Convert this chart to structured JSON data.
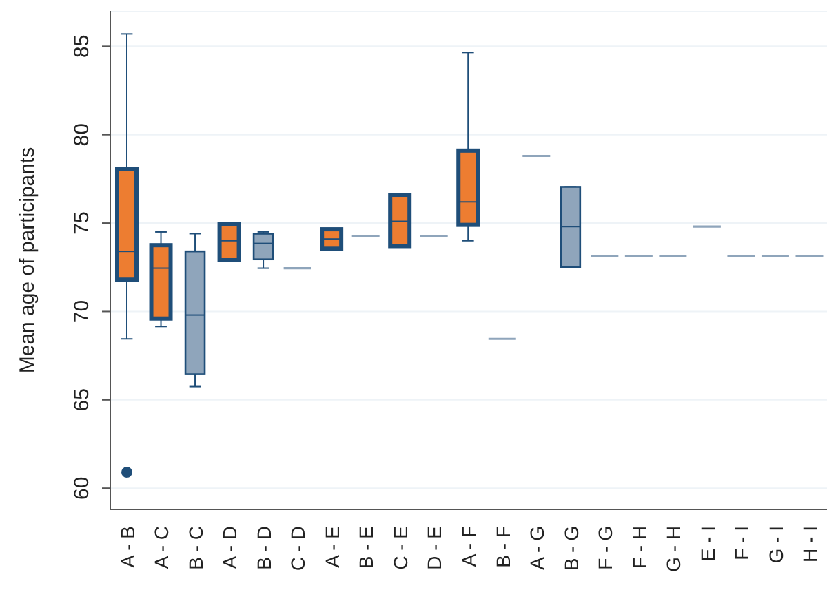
{
  "chart_data": {
    "type": "box",
    "ylabel": "Mean age of participants",
    "categories": [
      "A - B",
      "A - C",
      "B - C",
      "A - D",
      "B - D",
      "C - D",
      "A - E",
      "B - E",
      "C - E",
      "D - E",
      "A - F",
      "B - F",
      "A - G",
      "B - G",
      "F - G",
      "F - H",
      "G - H",
      "E - I",
      "F - I",
      "G - I",
      "H - I"
    ],
    "series": [
      {
        "color": "#ed7d31",
        "boxes": [
          {
            "low": 68.45,
            "q1": 71.8,
            "median": 73.4,
            "q3": 78.05,
            "high": 85.7,
            "outliers": [
              60.9
            ]
          },
          {
            "low": 69.15,
            "q1": 69.6,
            "median": 72.45,
            "q3": 73.75,
            "high": 74.5
          },
          null,
          {
            "low": 72.9,
            "q1": 72.9,
            "median": 74.0,
            "q3": 74.95,
            "high": 74.95
          },
          null,
          null,
          {
            "low": 73.55,
            "q1": 73.55,
            "median": 74.1,
            "q3": 74.65,
            "high": 74.65
          },
          null,
          {
            "low": 73.7,
            "q1": 73.7,
            "median": 75.1,
            "q3": 76.6,
            "high": 76.6
          },
          null,
          {
            "low": 74.0,
            "q1": 74.9,
            "median": 76.2,
            "q3": 79.1,
            "high": 84.65
          },
          null,
          null,
          null,
          null,
          null,
          null,
          null,
          null,
          null,
          null
        ]
      },
      {
        "color": "#8fa5bb",
        "boxes": [
          null,
          null,
          {
            "low": 65.75,
            "q1": 66.45,
            "median": 69.8,
            "q3": 73.4,
            "high": 74.4
          },
          null,
          {
            "low": 72.45,
            "q1": 72.95,
            "median": 73.85,
            "q3": 74.4,
            "high": 74.5
          },
          {
            "low": 72.45,
            "q1": 72.45,
            "median": 72.45,
            "q3": 72.45,
            "high": 72.45
          },
          null,
          {
            "low": 74.25,
            "q1": 74.25,
            "median": 74.25,
            "q3": 74.25,
            "high": 74.25
          },
          null,
          {
            "low": 74.25,
            "q1": 74.25,
            "median": 74.25,
            "q3": 74.25,
            "high": 74.25
          },
          null,
          {
            "low": 68.45,
            "q1": 68.45,
            "median": 68.45,
            "q3": 68.45,
            "high": 68.45
          },
          {
            "low": 78.8,
            "q1": 78.8,
            "median": 78.8,
            "q3": 78.8,
            "high": 78.8
          },
          {
            "low": 72.5,
            "q1": 72.5,
            "median": 74.8,
            "q3": 77.05,
            "high": 77.05
          },
          {
            "low": 73.15,
            "q1": 73.15,
            "median": 73.15,
            "q3": 73.15,
            "high": 73.15
          },
          {
            "low": 73.15,
            "q1": 73.15,
            "median": 73.15,
            "q3": 73.15,
            "high": 73.15
          },
          {
            "low": 73.15,
            "q1": 73.15,
            "median": 73.15,
            "q3": 73.15,
            "high": 73.15
          },
          {
            "low": 74.8,
            "q1": 74.8,
            "median": 74.8,
            "q3": 74.8,
            "high": 74.8
          },
          {
            "low": 73.15,
            "q1": 73.15,
            "median": 73.15,
            "q3": 73.15,
            "high": 73.15
          },
          {
            "low": 73.15,
            "q1": 73.15,
            "median": 73.15,
            "q3": 73.15,
            "high": 73.15
          },
          {
            "low": 73.15,
            "q1": 73.15,
            "median": 73.15,
            "q3": 73.15,
            "high": 73.15
          }
        ]
      }
    ],
    "ylim": [
      58.8,
      87
    ],
    "yticks": [
      60,
      65,
      70,
      75,
      80,
      85
    ],
    "grid": "y"
  }
}
